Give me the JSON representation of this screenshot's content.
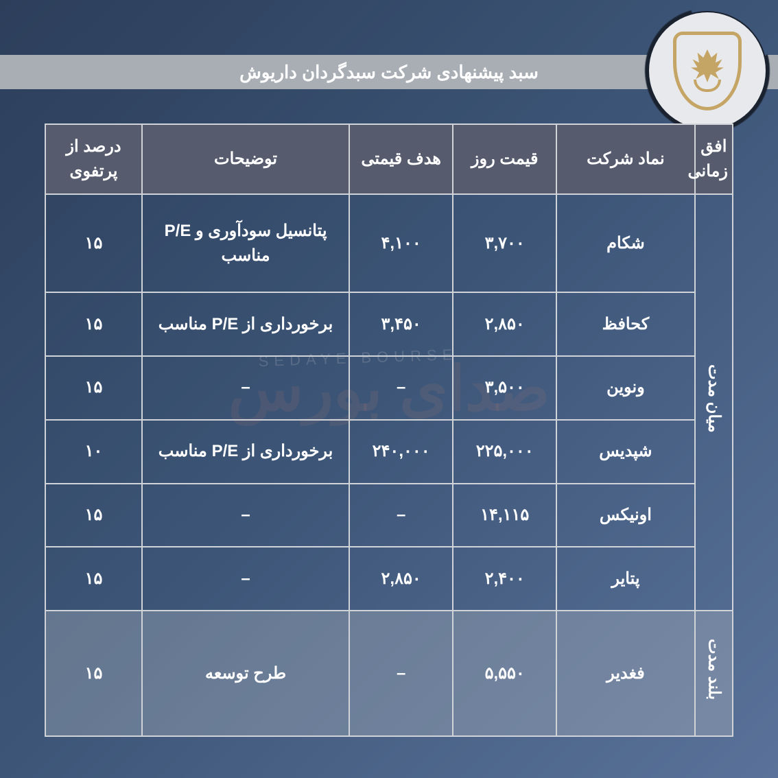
{
  "title": "سبد پیشنهادی شرکت سبدگردان داریوش",
  "colors": {
    "bg_gradient_from": "#2c3e5a",
    "bg_gradient_to": "#5a7299",
    "title_bar_bg": "#a9aeb5",
    "header_bg": "#565c6e",
    "border": "#d0d3d8",
    "text": "#ffffff",
    "logo_gold": "#c4a565",
    "logo_ring_bg": "#e8e9ec",
    "logo_brush": "#1a2230",
    "grey_row_bg": "rgba(180,185,195,0.35)",
    "watermark": "rgba(230,140,110,0.10)"
  },
  "columns": {
    "horizon": "افق زمانی",
    "symbol": "نماد شرکت",
    "price": "قیمت روز",
    "target": "هدف قیمتی",
    "desc": "توضیحات",
    "pct": "درصد از پرتفوی"
  },
  "groups": [
    {
      "horizon": "میان مدت",
      "grey": false,
      "rows": [
        {
          "symbol": "شکام",
          "price": "۳,۷۰۰",
          "target": "۴,۱۰۰",
          "desc": "پتانسیل سودآوری و P/E مناسب",
          "pct": "۱۵"
        },
        {
          "symbol": "کحافظ",
          "price": "۲,۸۵۰",
          "target": "۳,۴۵۰",
          "desc": "برخورداری از P/E مناسب",
          "pct": "۱۵"
        },
        {
          "symbol": "ونوین",
          "price": "۳,۵۰۰",
          "target": "–",
          "desc": "–",
          "pct": "۱۵"
        },
        {
          "symbol": "شپدیس",
          "price": "۲۲۵,۰۰۰",
          "target": "۲۴۰,۰۰۰",
          "desc": "برخورداری از P/E مناسب",
          "pct": "۱۰"
        },
        {
          "symbol": "اونیکس",
          "price": "۱۴,۱۱۵",
          "target": "–",
          "desc": "–",
          "pct": "۱۵"
        },
        {
          "symbol": "پتایر",
          "price": "۲,۴۰۰",
          "target": "۲,۸۵۰",
          "desc": "–",
          "pct": "۱۵"
        }
      ]
    },
    {
      "horizon": "بلند مدت",
      "grey": true,
      "rows": [
        {
          "symbol": "فغدیر",
          "price": "۵,۵۵۰",
          "target": "–",
          "desc": "طرح توسعه",
          "pct": "۱۵"
        }
      ]
    }
  ],
  "watermark_main": "صدای بورس",
  "watermark_sub": "SEDAYE BOURSE"
}
